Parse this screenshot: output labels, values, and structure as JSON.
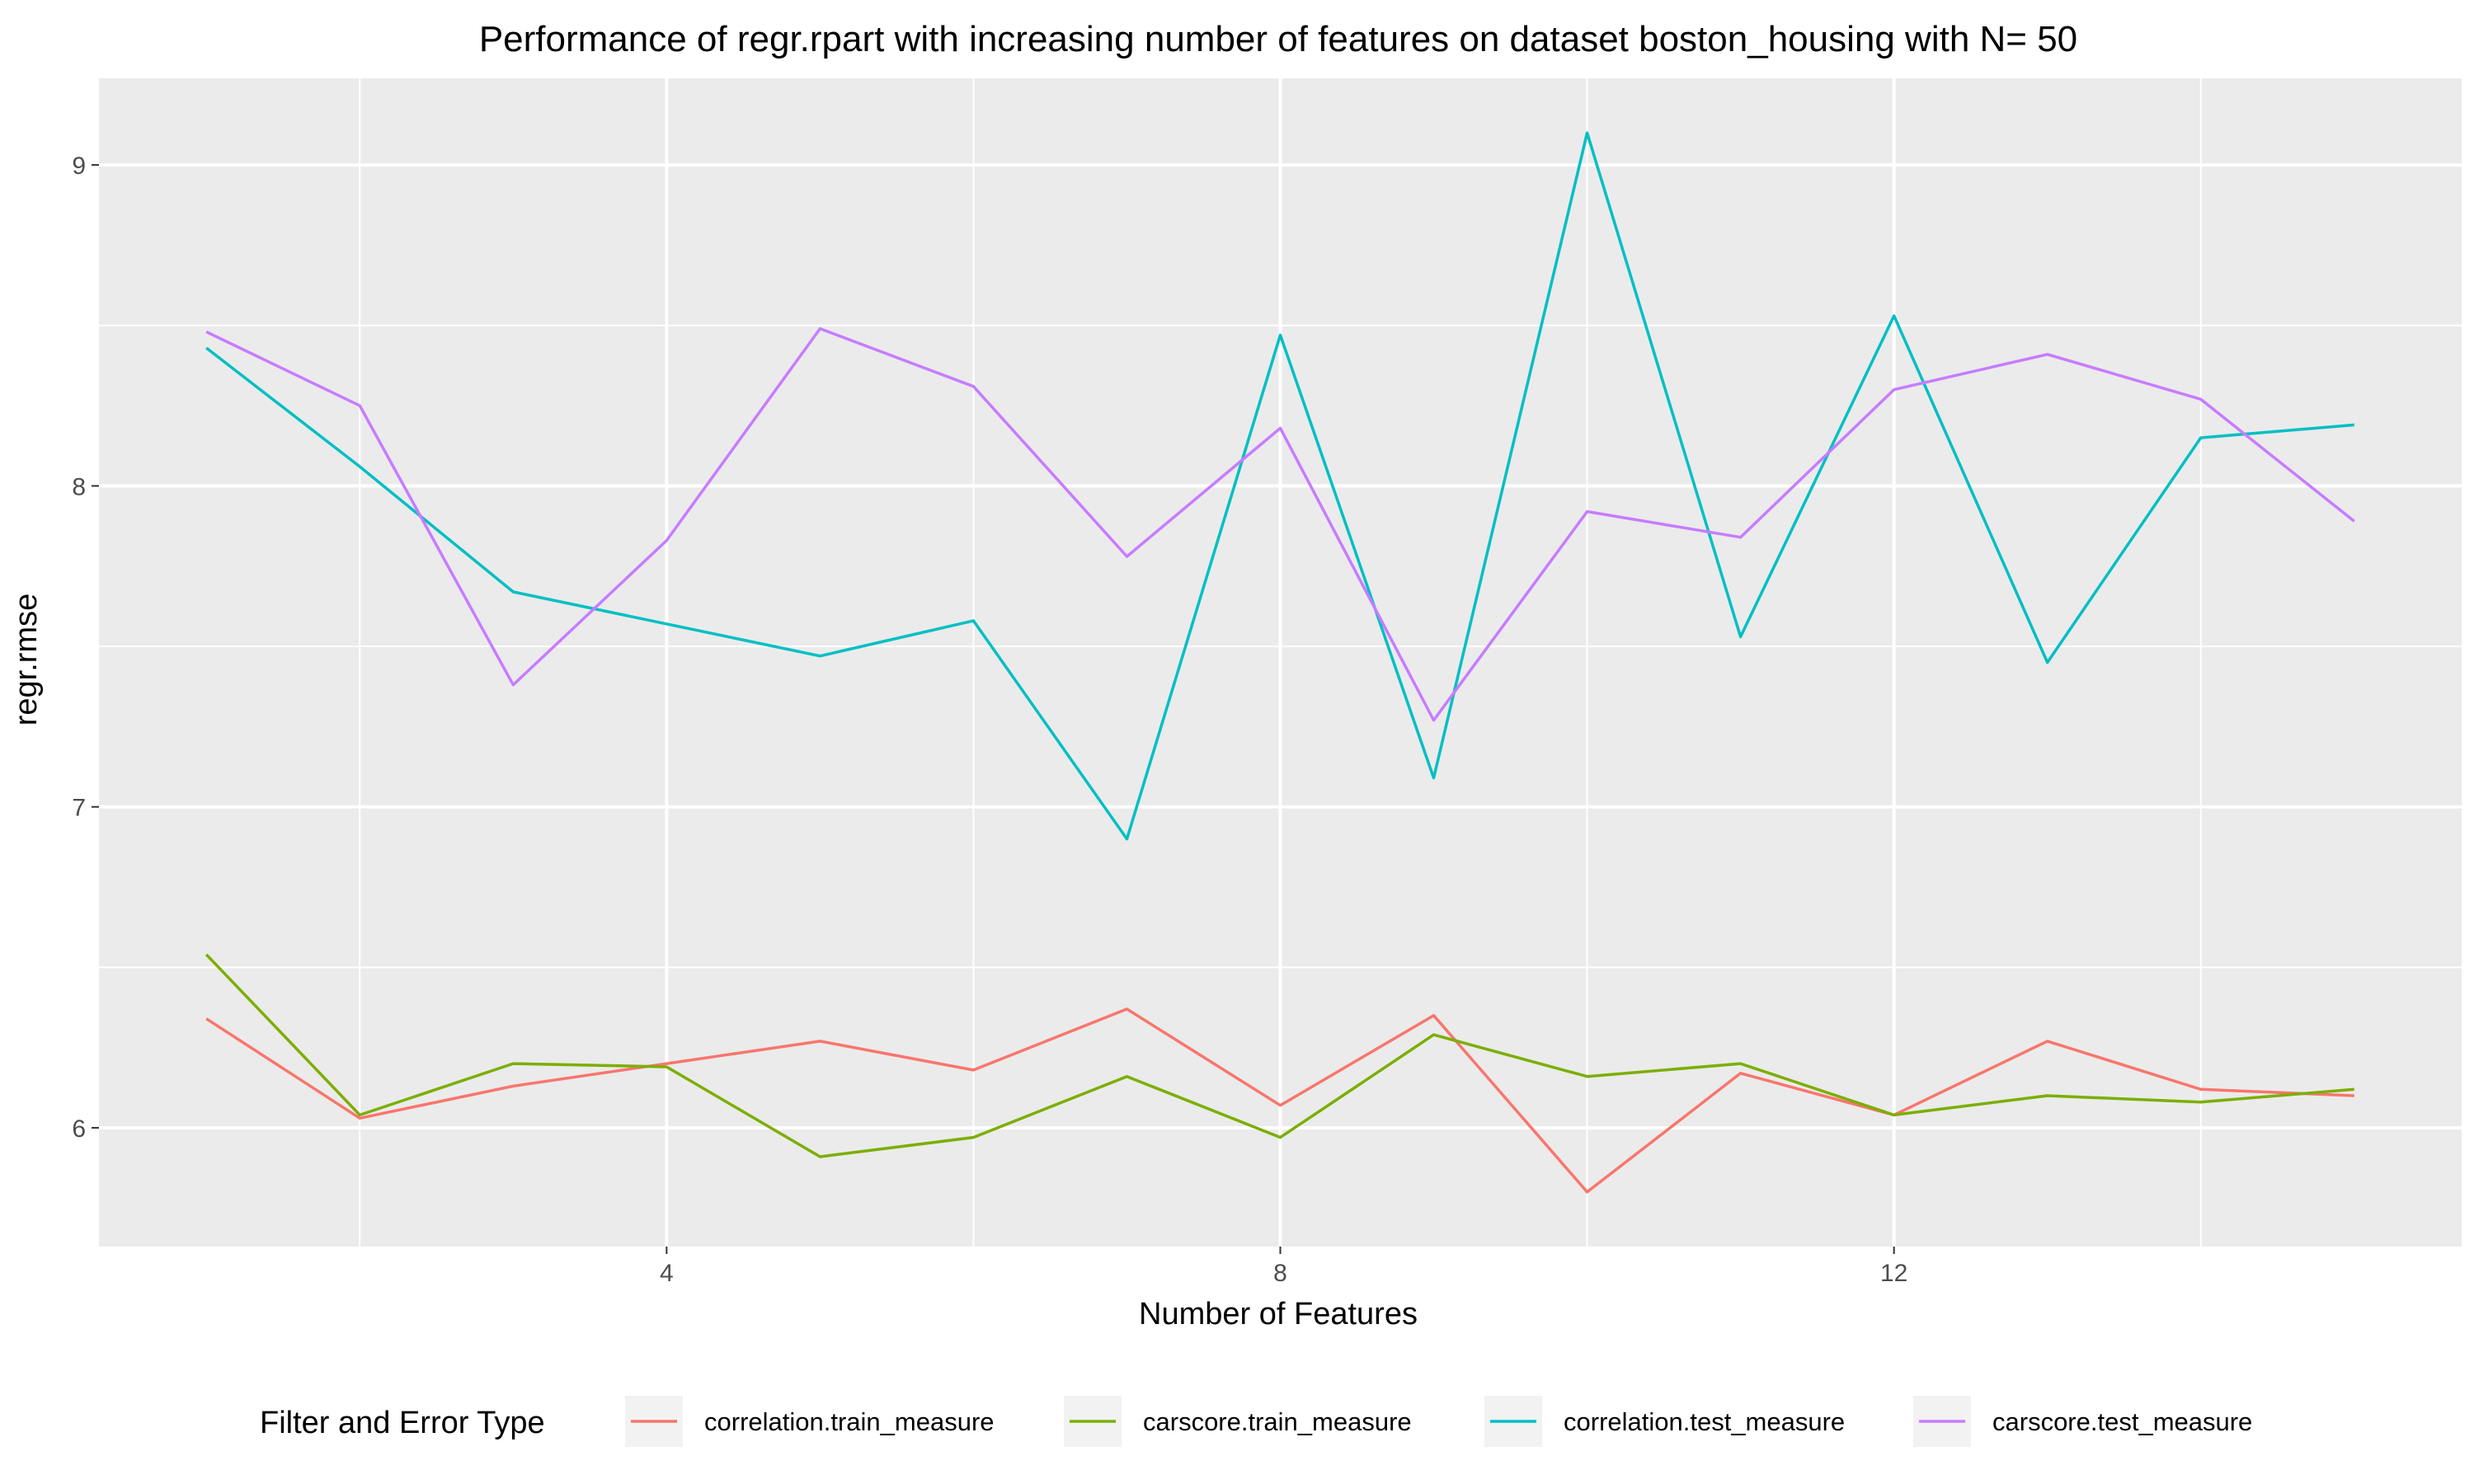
{
  "chart_data": {
    "type": "line",
    "title": "Performance of regr.rpart with increasing number of features on dataset boston_housing with N= 50",
    "xlabel": "Number of Features",
    "ylabel": "regr.rmse",
    "xlim": [
      0.3,
      15.7
    ],
    "ylim": [
      5.63,
      9.27
    ],
    "x_ticks": [
      4,
      8,
      12
    ],
    "x_minor_ticks": [
      2,
      6,
      10,
      14
    ],
    "y_ticks": [
      6,
      7,
      8,
      9
    ],
    "y_minor_ticks": [
      6.5,
      7.5,
      8.5
    ],
    "x": [
      1,
      2,
      3,
      4,
      5,
      6,
      7,
      8,
      9,
      10,
      11,
      12,
      13,
      14,
      15
    ],
    "grid": true,
    "legend_position": "bottom",
    "legend_title": "Filter and Error Type",
    "series": [
      {
        "name": "correlation.train_measure",
        "color": "#F8766D",
        "values": [
          6.34,
          6.03,
          6.13,
          6.2,
          6.27,
          6.18,
          6.37,
          6.07,
          6.35,
          5.8,
          6.17,
          6.04,
          6.27,
          6.12,
          6.1
        ]
      },
      {
        "name": "carscore.train_measure",
        "color": "#7CAE00",
        "values": [
          6.54,
          6.04,
          6.2,
          6.19,
          5.91,
          5.97,
          6.16,
          5.97,
          6.29,
          6.16,
          6.2,
          6.04,
          6.1,
          6.08,
          6.12
        ]
      },
      {
        "name": "correlation.test_measure",
        "color": "#00BFC4",
        "values": [
          8.43,
          8.06,
          7.67,
          7.57,
          7.47,
          7.58,
          6.9,
          8.47,
          7.09,
          9.1,
          7.53,
          8.53,
          7.45,
          8.15,
          8.19
        ]
      },
      {
        "name": "carscore.test_measure",
        "color": "#C77CFF",
        "values": [
          8.48,
          8.25,
          7.38,
          7.83,
          8.49,
          8.31,
          7.78,
          8.18,
          7.27,
          7.92,
          7.84,
          8.3,
          8.41,
          8.27,
          7.89
        ]
      }
    ]
  }
}
